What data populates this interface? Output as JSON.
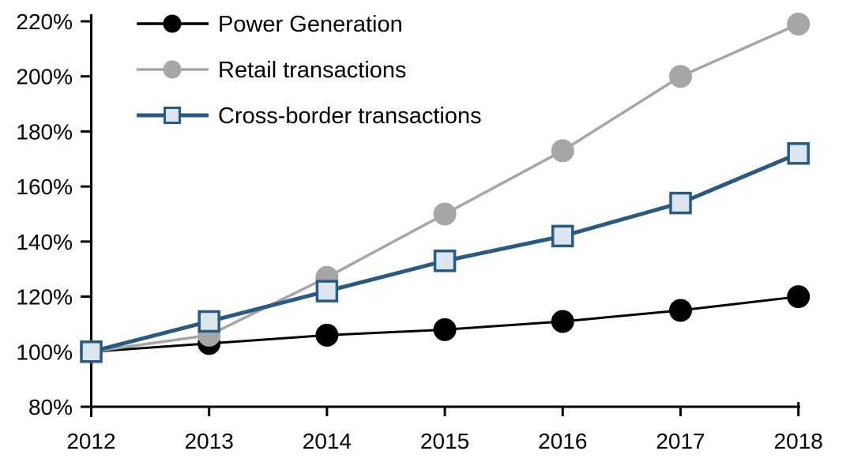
{
  "chart_data": {
    "type": "line",
    "title": "",
    "xlabel": "",
    "ylabel": "",
    "categories": [
      "2012",
      "2013",
      "2014",
      "2015",
      "2016",
      "2017",
      "2018"
    ],
    "series": [
      {
        "name": "Power Generation",
        "values": [
          100,
          103,
          106,
          108,
          111,
          115,
          120
        ],
        "line_color": "#000000",
        "line_width": 3,
        "marker": "circle",
        "marker_fill": "#000000",
        "marker_stroke": "#000000"
      },
      {
        "name": "Retail transactions",
        "values": [
          100,
          106,
          127,
          150,
          173,
          200,
          219
        ],
        "line_color": "#A6A6A6",
        "line_width": 3.5,
        "marker": "circle",
        "marker_fill": "#A6A6A6",
        "marker_stroke": "#A6A6A6"
      },
      {
        "name": "Cross-border transactions",
        "values": [
          100,
          111,
          122,
          133,
          142,
          154,
          172
        ],
        "line_color": "#2A5982",
        "line_width": 5,
        "marker": "square",
        "marker_fill": "#DCE6F1",
        "marker_stroke": "#2A5982"
      }
    ],
    "ylim": [
      80,
      220
    ],
    "ytick_step": 20,
    "y_tick_labels": [
      "80%",
      "100%",
      "120%",
      "140%",
      "160%",
      "180%",
      "200%",
      "220%"
    ],
    "x_tick_labels": [
      "2012",
      "2013",
      "2014",
      "2015",
      "2016",
      "2017",
      "2018"
    ],
    "grid": false,
    "legend": {
      "position": "top-left",
      "entries": [
        "Power Generation",
        "Retail transactions",
        "Cross-border transactions"
      ]
    },
    "axis_color": "#000000",
    "background_color": "#FFFFFF"
  }
}
